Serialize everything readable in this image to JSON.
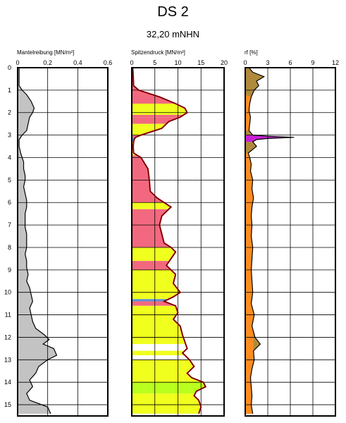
{
  "title": "DS 2",
  "subtitle": "32,20 mNHN",
  "chart_data": [
    {
      "type": "area",
      "title": "Mantelreibung [MN/m²]",
      "xlim": [
        0,
        0.6
      ],
      "xticks": [
        "0",
        "0.2",
        "0.4",
        "0.6"
      ],
      "ylim": [
        0,
        15.5
      ],
      "yticks": [
        "0",
        "1",
        "2",
        "3",
        "4",
        "5",
        "6",
        "7",
        "8",
        "9",
        "10",
        "11",
        "12",
        "13",
        "14",
        "15"
      ],
      "grid": true,
      "fill_color": "#c3c3c3",
      "depth": [
        0,
        0.3,
        0.8,
        1.0,
        1.2,
        1.5,
        1.8,
        2.0,
        2.2,
        2.5,
        2.8,
        3.0,
        3.2,
        3.5,
        3.8,
        4.0,
        4.2,
        4.5,
        4.8,
        5.0,
        5.3,
        5.6,
        5.9,
        6.2,
        6.5,
        6.8,
        7.1,
        7.4,
        7.7,
        8.0,
        8.3,
        8.6,
        8.9,
        9.2,
        9.5,
        9.8,
        10.1,
        10.4,
        10.7,
        11.0,
        11.3,
        11.6,
        11.9,
        12.1,
        12.3,
        12.5,
        12.8,
        13.0,
        13.3,
        13.6,
        13.9,
        14.2,
        14.5,
        14.8,
        15.1,
        15.4
      ],
      "values": [
        0.01,
        0.01,
        0.01,
        0.03,
        0.06,
        0.09,
        0.11,
        0.1,
        0.08,
        0.07,
        0.06,
        0.03,
        0.01,
        0.01,
        0.02,
        0.03,
        0.04,
        0.04,
        0.05,
        0.05,
        0.04,
        0.05,
        0.06,
        0.06,
        0.05,
        0.05,
        0.05,
        0.06,
        0.06,
        0.06,
        0.05,
        0.06,
        0.06,
        0.07,
        0.06,
        0.08,
        0.09,
        0.1,
        0.08,
        0.09,
        0.1,
        0.12,
        0.18,
        0.21,
        0.17,
        0.24,
        0.26,
        0.2,
        0.14,
        0.12,
        0.08,
        0.1,
        0.06,
        0.08,
        0.2,
        0.22
      ]
    },
    {
      "type": "area",
      "title": "Spitzendruck [MN/m²]",
      "xlim": [
        0,
        20
      ],
      "xticks": [
        "0",
        "5",
        "10",
        "15",
        "20"
      ],
      "ylim": [
        0,
        15.5
      ],
      "grid": true,
      "line_color": "#c8000a",
      "depth": [
        0,
        0.3,
        0.8,
        1.0,
        1.3,
        1.6,
        1.8,
        2.0,
        2.2,
        2.4,
        2.7,
        3.0,
        3.1,
        3.2,
        3.3,
        3.5,
        3.8,
        4.0,
        4.5,
        5.0,
        5.5,
        5.8,
        6.0,
        6.2,
        6.4,
        6.6,
        7.0,
        7.4,
        7.8,
        8.0,
        8.2,
        8.5,
        8.8,
        9.0,
        9.2,
        9.6,
        10.0,
        10.2,
        10.4,
        10.6,
        10.9,
        11.2,
        11.5,
        11.9,
        12.2,
        12.5,
        12.7,
        13.0,
        13.3,
        13.6,
        13.8,
        14.0,
        14.2,
        14.4,
        14.6,
        14.8,
        15.1,
        15.4
      ],
      "values": [
        0.2,
        0.3,
        0.4,
        1.5,
        6.0,
        9.5,
        11.5,
        12.0,
        10.5,
        8.0,
        6.5,
        2.0,
        0.8,
        0.5,
        0.4,
        0.3,
        0.4,
        2.0,
        3.5,
        3.8,
        4.0,
        5.5,
        7.0,
        8.5,
        7.5,
        6.5,
        6.0,
        6.5,
        7.0,
        8.5,
        9.5,
        8.5,
        7.5,
        8.5,
        9.5,
        9.0,
        10.5,
        9.0,
        7.0,
        9.5,
        10.0,
        9.0,
        10.5,
        11.0,
        11.5,
        12.0,
        11.0,
        12.5,
        13.5,
        12.0,
        13.0,
        15.5,
        16.0,
        14.0,
        13.5,
        14.5,
        15.0,
        14.5
      ],
      "soil_colors": {
        "peat": "#f2697f",
        "sand": "#f0ff1e",
        "sand_white": "#ffffff",
        "gravel": "#b9ff1e",
        "clay": "#5a8ed8"
      },
      "bands": [
        {
          "from": 0,
          "to": 1.0,
          "soil": "peat"
        },
        {
          "from": 1.0,
          "to": 1.6,
          "soil": "peat"
        },
        {
          "from": 1.6,
          "to": 2.1,
          "soil": "sand"
        },
        {
          "from": 2.1,
          "to": 2.2,
          "soil": "peat"
        },
        {
          "from": 2.2,
          "to": 2.5,
          "soil": "peat"
        },
        {
          "from": 2.5,
          "to": 3.0,
          "soil": "sand"
        },
        {
          "from": 3.0,
          "to": 3.1,
          "soil": "peat"
        },
        {
          "from": 3.1,
          "to": 3.3,
          "soil": "clay"
        },
        {
          "from": 3.3,
          "to": 3.9,
          "soil": "sand"
        },
        {
          "from": 3.9,
          "to": 6.0,
          "soil": "peat"
        },
        {
          "from": 6.0,
          "to": 6.3,
          "soil": "sand"
        },
        {
          "from": 6.3,
          "to": 8.0,
          "soil": "peat"
        },
        {
          "from": 8.0,
          "to": 8.6,
          "soil": "sand"
        },
        {
          "from": 8.6,
          "to": 9.0,
          "soil": "peat"
        },
        {
          "from": 9.0,
          "to": 10.3,
          "soil": "sand"
        },
        {
          "from": 10.3,
          "to": 10.4,
          "soil": "clay"
        },
        {
          "from": 10.4,
          "to": 10.6,
          "soil": "peat"
        },
        {
          "from": 10.6,
          "to": 12.3,
          "soil": "sand"
        },
        {
          "from": 12.3,
          "to": 12.6,
          "soil": "sand_white"
        },
        {
          "from": 12.6,
          "to": 12.8,
          "soil": "sand"
        },
        {
          "from": 12.8,
          "to": 13.0,
          "soil": "sand_white"
        },
        {
          "from": 13.0,
          "to": 14.0,
          "soil": "sand"
        },
        {
          "from": 14.0,
          "to": 14.5,
          "soil": "gravel"
        },
        {
          "from": 14.5,
          "to": 15.4,
          "soil": "sand"
        }
      ]
    },
    {
      "type": "area",
      "title": "rf [%]",
      "xlim": [
        0,
        12
      ],
      "xticks": [
        "0",
        "3",
        "6",
        "9",
        "12"
      ],
      "ylim": [
        0,
        15.5
      ],
      "grid": true,
      "fill_color": "#b08a3c",
      "accent_colors": {
        "orange": "#ff8c1e",
        "magenta": "#c820d6"
      },
      "depth": [
        0,
        0.2,
        0.4,
        0.6,
        0.8,
        1.0,
        1.3,
        1.6,
        1.9,
        2.2,
        2.5,
        2.8,
        3.0,
        3.05,
        3.1,
        3.15,
        3.2,
        3.3,
        3.5,
        3.8,
        4.0,
        4.3,
        4.6,
        5.0,
        5.4,
        5.8,
        6.2,
        6.6,
        7.0,
        7.5,
        8.0,
        8.5,
        9.0,
        9.5,
        10.0,
        10.5,
        11.0,
        11.5,
        12.0,
        12.3,
        12.6,
        13.0,
        13.4,
        13.8,
        14.2,
        14.6,
        15.0,
        15.4
      ],
      "values": [
        0.5,
        1.0,
        2.5,
        1.5,
        1.8,
        1.2,
        0.8,
        0.6,
        0.5,
        0.7,
        0.6,
        0.5,
        1.0,
        3.0,
        6.5,
        3.0,
        1.5,
        1.0,
        1.5,
        0.4,
        0.6,
        0.8,
        0.7,
        1.0,
        0.9,
        1.1,
        0.9,
        0.8,
        0.9,
        0.8,
        1.0,
        0.9,
        0.8,
        0.9,
        1.0,
        0.8,
        1.2,
        0.9,
        1.3,
        2.0,
        1.1,
        1.2,
        0.9,
        0.7,
        0.8,
        0.9,
        0.8,
        1.0
      ]
    }
  ]
}
